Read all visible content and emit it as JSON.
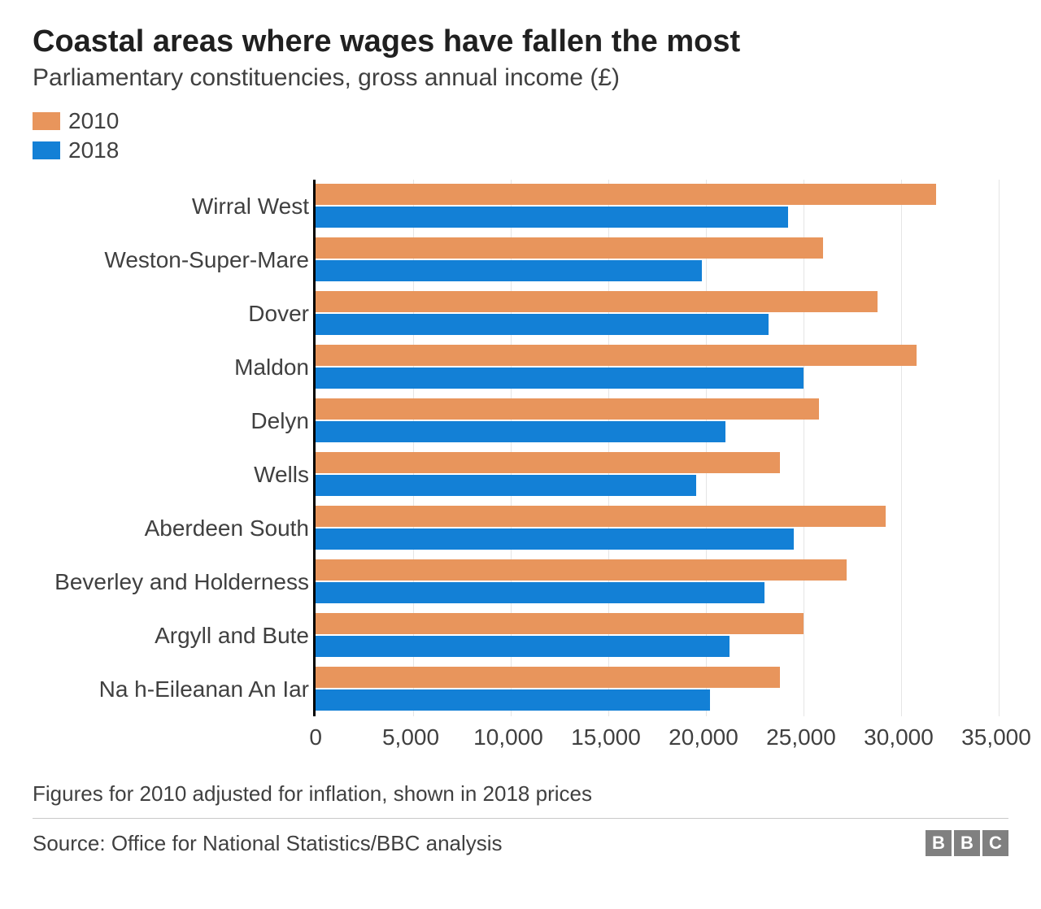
{
  "title": "Coastal areas where wages have fallen the most",
  "subtitle": "Parliamentary constituencies, gross annual income (£)",
  "chart": {
    "type": "grouped-horizontal-bar",
    "x_min": 0,
    "x_max": 35000,
    "x_tick_step": 5000,
    "x_tick_labels": [
      "0",
      "5,000",
      "10,000",
      "15,000",
      "20,000",
      "25,000",
      "30,000",
      "35,000"
    ],
    "background_color": "#ffffff",
    "grid_color": "#e5e5e5",
    "axis_color": "#000000",
    "label_fontsize": 28,
    "series": [
      {
        "name": "2010",
        "color": "#e8955c"
      },
      {
        "name": "2018",
        "color": "#1380d6"
      }
    ],
    "categories": [
      {
        "label": "Wirral West",
        "values": [
          31800,
          24200
        ]
      },
      {
        "label": "Weston-Super-Mare",
        "values": [
          26000,
          19800
        ]
      },
      {
        "label": "Dover",
        "values": [
          28800,
          23200
        ]
      },
      {
        "label": "Maldon",
        "values": [
          30800,
          25000
        ]
      },
      {
        "label": "Delyn",
        "values": [
          25800,
          21000
        ]
      },
      {
        "label": "Wells",
        "values": [
          23800,
          19500
        ]
      },
      {
        "label": "Aberdeen South",
        "values": [
          29200,
          24500
        ]
      },
      {
        "label": "Beverley and Holderness",
        "values": [
          27200,
          23000
        ]
      },
      {
        "label": "Argyll and Bute",
        "values": [
          25000,
          21200
        ]
      },
      {
        "label": "Na h-Eileanan An Iar",
        "values": [
          23800,
          20200
        ]
      }
    ]
  },
  "footnote": "Figures for 2010 adjusted for inflation, shown in 2018 prices",
  "source": "Source: Office for National Statistics/BBC analysis",
  "logo_letters": [
    "B",
    "B",
    "C"
  ],
  "logo_bg": "#808080",
  "logo_fg": "#ffffff"
}
